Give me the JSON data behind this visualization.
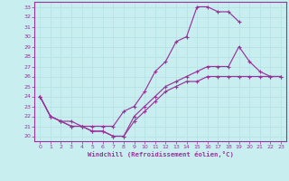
{
  "xlabel": "Windchill (Refroidissement éolien,°C)",
  "bg_color": "#c8eef0",
  "line_color": "#993399",
  "grid_color": "#b8e4e8",
  "xlim": [
    -0.5,
    23.5
  ],
  "ylim": [
    19.5,
    33.5
  ],
  "xticks": [
    0,
    1,
    2,
    3,
    4,
    5,
    6,
    7,
    8,
    9,
    10,
    11,
    12,
    13,
    14,
    15,
    16,
    17,
    18,
    19,
    20,
    21,
    22,
    23
  ],
  "yticks": [
    20,
    21,
    22,
    23,
    24,
    25,
    26,
    27,
    28,
    29,
    30,
    31,
    32,
    33
  ],
  "line1_x": [
    0,
    1,
    2,
    3,
    4,
    5,
    6,
    7,
    8,
    9,
    10,
    11,
    12,
    13,
    14,
    15,
    16,
    17,
    18,
    19,
    20,
    21,
    22,
    23
  ],
  "line1_y": [
    24,
    22,
    21.5,
    21,
    21,
    20.5,
    20.5,
    20,
    20,
    21.5,
    22.5,
    23.5,
    24.5,
    25,
    25.5,
    25.5,
    26,
    26,
    26,
    26,
    26,
    26,
    26,
    26
  ],
  "line2_x": [
    0,
    1,
    2,
    3,
    4,
    5,
    6,
    7,
    8,
    9,
    10,
    11,
    12,
    13,
    14,
    15,
    16,
    17,
    18,
    19,
    20,
    21,
    22,
    23
  ],
  "line2_y": [
    24,
    22,
    21.5,
    21.5,
    21,
    21,
    21,
    21,
    22.5,
    23,
    24.5,
    26.5,
    27.5,
    29.5,
    30,
    33,
    33,
    32.5,
    32.5,
    31.5,
    null,
    null,
    null,
    null
  ],
  "line3_x": [
    0,
    1,
    2,
    3,
    4,
    5,
    6,
    7,
    8,
    9,
    10,
    11,
    12,
    13,
    14,
    15,
    16,
    17,
    18,
    19,
    20,
    21,
    22,
    23
  ],
  "line3_y": [
    24,
    22,
    21.5,
    21,
    21,
    20.5,
    20.5,
    20,
    20,
    22,
    23,
    24,
    25,
    25.5,
    26,
    26.5,
    27,
    27,
    27,
    29,
    27.5,
    26.5,
    26,
    26
  ]
}
